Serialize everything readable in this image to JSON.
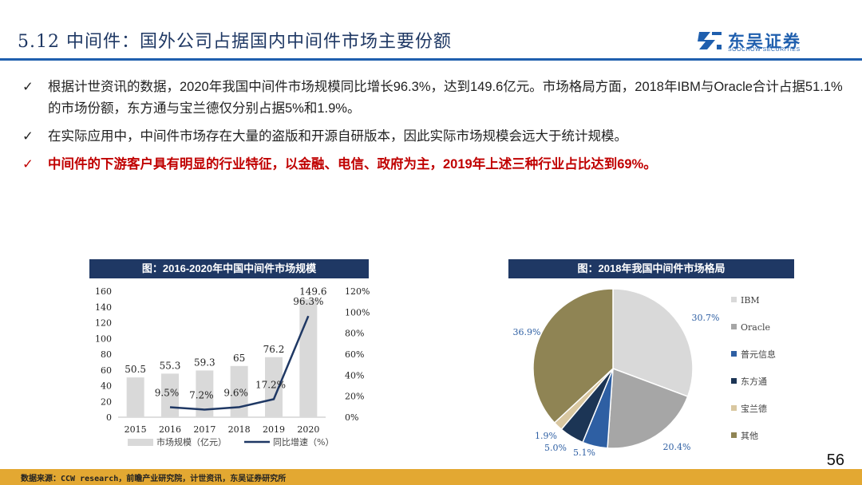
{
  "header": {
    "title": "5.12 中间件：国外公司占据国内中间件市场主要份额",
    "logo_text": "东吴证券",
    "logo_sub": "SOOCHOW SECURITIES"
  },
  "bullets": [
    {
      "mark": "✓",
      "text": "根据计世资讯的数据，2020年我国中间件市场规模同比增长96.3%，达到149.6亿元。市场格局方面，2018年IBM与Oracle合计占据51.1%的市场份额，东方通与宝兰德仅分别占据5%和1.9%。"
    },
    {
      "mark": "✓",
      "text": "在实际应用中，中间件市场存在大量的盗版和开源自研版本，因此实际市场规模会远大于统计规模。"
    },
    {
      "mark": "✓",
      "text": "中间件的下游客户具有明显的行业特征，以金融、电信、政府为主，2019年上述三种行业占比达到69%。"
    }
  ],
  "chart_data": [
    {
      "type": "bar",
      "title": "图：2016-2020年中国中间件市场规模",
      "categories": [
        "2015",
        "2016",
        "2017",
        "2018",
        "2019",
        "2020"
      ],
      "series": [
        {
          "name": "市场规模（亿元）",
          "type": "bar",
          "axis": "left",
          "values": [
            50.5,
            55.3,
            59.3,
            65,
            76.2,
            149.6
          ],
          "color": "#d9d9d9",
          "labels": [
            "50.5",
            "55.3",
            "59.3",
            "65",
            "76.2",
            "149.6"
          ]
        },
        {
          "name": "同比增速（%）",
          "type": "line",
          "axis": "right",
          "x": [
            "2016",
            "2017",
            "2018",
            "2019",
            "2020"
          ],
          "values": [
            9.5,
            7.2,
            9.6,
            17.2,
            96.3
          ],
          "color": "#1f3864",
          "labels": [
            "9.5%",
            "7.2%",
            "9.6%",
            "17.2%",
            "96.3%"
          ]
        }
      ],
      "ylim": [
        0,
        160
      ],
      "yticks": [
        "0",
        "20",
        "40",
        "60",
        "80",
        "100",
        "120",
        "140",
        "160"
      ],
      "y2lim": [
        0,
        120
      ],
      "y2ticks": [
        "0%",
        "20%",
        "40%",
        "60%",
        "80%",
        "100%",
        "120%"
      ],
      "legend_position": "bottom"
    },
    {
      "type": "pie",
      "title": "图：2018年我国中间件市场格局",
      "slices": [
        {
          "name": "IBM",
          "value": 30.7,
          "label": "30.7%",
          "color": "#d9d9d9"
        },
        {
          "name": "Oracle",
          "value": 20.4,
          "label": "20.4%",
          "color": "#a6a6a6"
        },
        {
          "name": "普元信息",
          "value": 5.1,
          "label": "5.1%",
          "color": "#2e5fa3"
        },
        {
          "name": "东方通",
          "value": 5.0,
          "label": "5.0%",
          "color": "#1c3555"
        },
        {
          "name": "宝兰德",
          "value": 1.9,
          "label": "1.9%",
          "color": "#d9c7a0"
        },
        {
          "name": "其他",
          "value": 36.9,
          "label": "36.9%",
          "color": "#8f8454"
        }
      ],
      "legend_position": "right"
    }
  ],
  "page_number": "56",
  "footer": {
    "source": "数据来源：CCW research，前瞻产业研究院，计世资讯，东吴证券研究所"
  }
}
